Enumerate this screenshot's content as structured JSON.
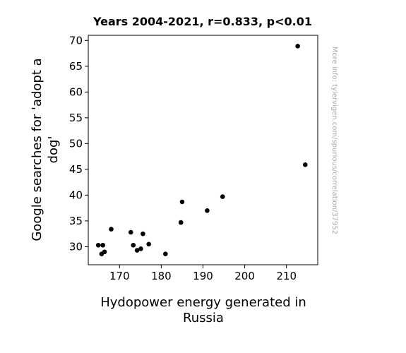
{
  "chart_data": {
    "type": "scatter",
    "title": "Years 2004-2021, r=0.833, p<0.01",
    "xlabel_lines": [
      "Hydopower energy generated in",
      "Russia"
    ],
    "ylabel_lines": [
      "Google searches for 'adopt a",
      "dog'"
    ],
    "side_note": "More info: tylervigen.com/spurious/correlation/37952",
    "xlim": [
      162.5,
      217.5
    ],
    "ylim": [
      26.5,
      71
    ],
    "xticks": [
      170,
      180,
      190,
      200,
      210
    ],
    "yticks": [
      30,
      35,
      40,
      45,
      50,
      55,
      60,
      65,
      70
    ],
    "grid": false,
    "point_color": "#000000",
    "points": [
      {
        "x": 164.9,
        "y": 30.3
      },
      {
        "x": 165.7,
        "y": 28.6
      },
      {
        "x": 166.0,
        "y": 30.3
      },
      {
        "x": 166.4,
        "y": 29.0
      },
      {
        "x": 168.0,
        "y": 33.4
      },
      {
        "x": 172.7,
        "y": 32.8
      },
      {
        "x": 173.3,
        "y": 30.3
      },
      {
        "x": 174.2,
        "y": 29.3
      },
      {
        "x": 175.1,
        "y": 29.6
      },
      {
        "x": 175.6,
        "y": 32.5
      },
      {
        "x": 177.0,
        "y": 30.5
      },
      {
        "x": 181.0,
        "y": 28.6
      },
      {
        "x": 184.7,
        "y": 34.7
      },
      {
        "x": 185.0,
        "y": 38.7
      },
      {
        "x": 191.0,
        "y": 37.0
      },
      {
        "x": 194.7,
        "y": 39.7
      },
      {
        "x": 212.7,
        "y": 68.9
      },
      {
        "x": 214.5,
        "y": 45.9
      }
    ]
  }
}
